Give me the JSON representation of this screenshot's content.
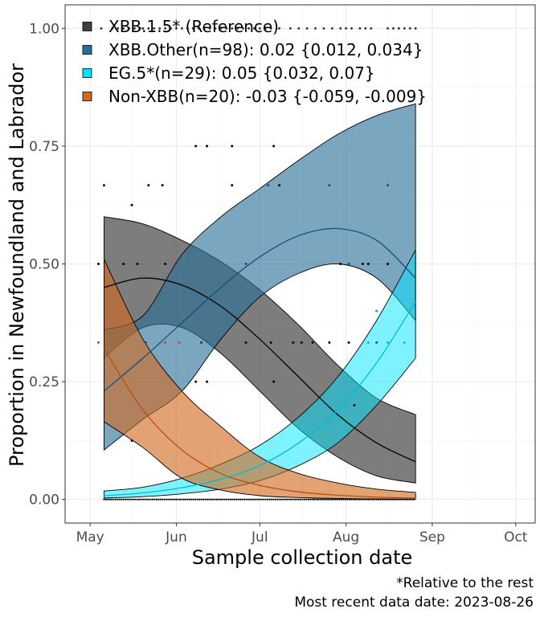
{
  "chart_data": {
    "type": "area",
    "xlabel": "Sample collection date",
    "ylabel": "Proportion in Newfoundland and Labrador",
    "x_ticks": [
      "May",
      "Jun",
      "Jul",
      "Aug",
      "Sep",
      "Oct"
    ],
    "x_tick_dates": [
      "2023-05-01",
      "2023-06-01",
      "2023-07-01",
      "2023-08-01",
      "2023-09-01",
      "2023-10-01"
    ],
    "xlim": [
      "2023-04-22",
      "2023-10-08"
    ],
    "y_ticks": [
      "0.00",
      "0.25",
      "0.50",
      "0.75",
      "1.00"
    ],
    "ylim": [
      -0.05,
      1.05
    ],
    "grid": true,
    "legend_position": "top-left",
    "captions": [
      "*Relative to the rest",
      "Most recent data date: 2023-08-26"
    ],
    "series": [
      {
        "name": "XBB.1.5* (Reference)",
        "color": "#404040",
        "line_color": "#000000",
        "x": [
          "2023-05-06",
          "2023-05-20",
          "2023-06-03",
          "2023-06-17",
          "2023-07-01",
          "2023-07-15",
          "2023-07-29",
          "2023-08-12",
          "2023-08-26"
        ],
        "fit": [
          0.45,
          0.47,
          0.455,
          0.41,
          0.34,
          0.26,
          0.18,
          0.12,
          0.08
        ],
        "lower": [
          0.3,
          0.365,
          0.365,
          0.31,
          0.23,
          0.15,
          0.09,
          0.05,
          0.035
        ],
        "upper": [
          0.6,
          0.585,
          0.55,
          0.505,
          0.445,
          0.37,
          0.285,
          0.215,
          0.18
        ]
      },
      {
        "name": "XBB.Other(n=98): 0.02 {0.012, 0.034}",
        "color": "#2a6f97",
        "line_color": "#184e77",
        "x": [
          "2023-05-06",
          "2023-05-20",
          "2023-06-03",
          "2023-06-17",
          "2023-07-01",
          "2023-07-15",
          "2023-07-29",
          "2023-08-12",
          "2023-08-26"
        ],
        "fit": [
          0.23,
          0.3,
          0.375,
          0.45,
          0.515,
          0.56,
          0.575,
          0.55,
          0.47
        ],
        "lower": [
          0.105,
          0.17,
          0.23,
          0.34,
          0.43,
          0.48,
          0.5,
          0.47,
          0.38
        ],
        "upper": [
          0.36,
          0.39,
          0.52,
          0.6,
          0.66,
          0.72,
          0.775,
          0.815,
          0.84
        ]
      },
      {
        "name": "EG.5*(n=29): 0.05 {0.032, 0.07}",
        "color": "#00e5ff",
        "line_color": "#00bcd4",
        "x": [
          "2023-05-06",
          "2023-05-20",
          "2023-06-03",
          "2023-06-17",
          "2023-07-01",
          "2023-07-15",
          "2023-07-29",
          "2023-08-12",
          "2023-08-26"
        ],
        "fit": [
          0.008,
          0.014,
          0.025,
          0.043,
          0.072,
          0.12,
          0.19,
          0.29,
          0.42
        ],
        "lower": [
          0.003,
          0.006,
          0.012,
          0.022,
          0.04,
          0.072,
          0.12,
          0.2,
          0.3
        ],
        "upper": [
          0.018,
          0.026,
          0.045,
          0.075,
          0.115,
          0.175,
          0.26,
          0.38,
          0.53
        ]
      },
      {
        "name": "Non-XBB(n=20): -0.03 {-0.059, -0.009}",
        "color": "#d2691e",
        "line_color": "#b5500b",
        "x": [
          "2023-05-06",
          "2023-05-20",
          "2023-06-03",
          "2023-06-17",
          "2023-07-01",
          "2023-07-15",
          "2023-07-29",
          "2023-08-12",
          "2023-08-26"
        ],
        "fit": [
          0.32,
          0.19,
          0.105,
          0.055,
          0.03,
          0.016,
          0.009,
          0.005,
          0.003
        ],
        "lower": [
          0.165,
          0.11,
          0.045,
          0.02,
          0.008,
          0.004,
          0.002,
          0.001,
          0.0005
        ],
        "upper": [
          0.51,
          0.34,
          0.23,
          0.155,
          0.09,
          0.055,
          0.035,
          0.022,
          0.015
        ]
      }
    ],
    "observations": [
      {
        "series": 0,
        "points": [
          [
            "2023-05-04",
            0.5
          ],
          [
            "2023-05-13",
            0.5
          ],
          [
            "2023-05-18",
            0.5
          ],
          [
            "2023-05-28",
            0.5
          ],
          [
            "2023-05-06",
            0.667
          ],
          [
            "2023-05-16",
            0.625
          ],
          [
            "2023-05-22",
            0.667
          ],
          [
            "2023-05-27",
            0.667
          ],
          [
            "2023-06-08",
            0.75
          ],
          [
            "2023-06-12",
            0.75
          ],
          [
            "2023-06-21",
            0.75
          ],
          [
            "2023-06-21",
            0.667
          ],
          [
            "2023-07-06",
            0.75
          ],
          [
            "2023-07-08",
            0.667
          ],
          [
            "2023-06-10",
            0.333
          ],
          [
            "2023-06-26",
            0.333
          ],
          [
            "2023-07-05",
            0.333
          ],
          [
            "2023-07-13",
            0.333
          ],
          [
            "2023-07-16",
            0.333
          ],
          [
            "2023-07-20",
            0.333
          ],
          [
            "2023-07-26",
            0.333
          ],
          [
            "2023-08-02",
            0.333
          ],
          [
            "2023-06-08",
            0.25
          ],
          [
            "2023-06-12",
            0.25
          ],
          [
            "2023-07-06",
            0.25
          ],
          [
            "2023-08-04",
            0.2
          ],
          [
            "2023-05-16",
            0.125
          ],
          [
            "2023-07-30",
            0.5
          ],
          [
            "2023-08-07",
            0.5
          ],
          [
            "2023-08-09",
            0.5
          ],
          [
            "2023-08-16",
            0.5
          ]
        ]
      },
      {
        "series": 1,
        "points": [
          [
            "2023-05-21",
            0.333
          ],
          [
            "2023-06-10",
            0.333
          ],
          [
            "2023-07-04",
            0.667
          ],
          [
            "2023-07-26",
            0.667
          ],
          [
            "2023-08-16",
            0.667
          ],
          [
            "2023-06-26",
            0.5
          ],
          [
            "2023-08-12",
            0.4
          ],
          [
            "2023-08-02",
            0.5
          ],
          [
            "2023-08-12",
            0.333
          ]
        ]
      },
      {
        "series": 2,
        "points": [
          [
            "2023-08-12",
            0.4
          ],
          [
            "2023-08-22",
            0.333
          ],
          [
            "2023-08-16",
            0.333
          ],
          [
            "2023-08-09",
            0.333
          ]
        ]
      },
      {
        "series": 3,
        "points": [
          [
            "2023-05-04",
            0.333
          ],
          [
            "2023-05-28",
            0.333
          ],
          [
            "2023-06-02",
            0.333
          ]
        ]
      }
    ],
    "ref_row_points": [
      "2023-05-05",
      "2023-05-09",
      "2023-05-11",
      "2023-05-13",
      "2023-05-15",
      "2023-05-17",
      "2023-05-19",
      "2023-05-20",
      "2023-05-22",
      "2023-05-24",
      "2023-05-26",
      "2023-05-28",
      "2023-05-30",
      "2023-06-01",
      "2023-06-03",
      "2023-06-05",
      "2023-06-07",
      "2023-06-09",
      "2023-06-11",
      "2023-06-13",
      "2023-06-15",
      "2023-06-17",
      "2023-06-19",
      "2023-06-21",
      "2023-06-23",
      "2023-06-25",
      "2023-06-27",
      "2023-06-29",
      "2023-07-01",
      "2023-07-03",
      "2023-07-05",
      "2023-07-08",
      "2023-07-12",
      "2023-07-15",
      "2023-07-18",
      "2023-07-21",
      "2023-07-24",
      "2023-07-27",
      "2023-07-30",
      "2023-08-01",
      "2023-08-03",
      "2023-08-06",
      "2023-08-08",
      "2023-08-10",
      "2023-08-16",
      "2023-08-18",
      "2023-08-20",
      "2023-08-22",
      "2023-08-24",
      "2023-08-26"
    ],
    "zero_row_range": [
      "2023-05-06",
      "2023-08-26"
    ]
  }
}
